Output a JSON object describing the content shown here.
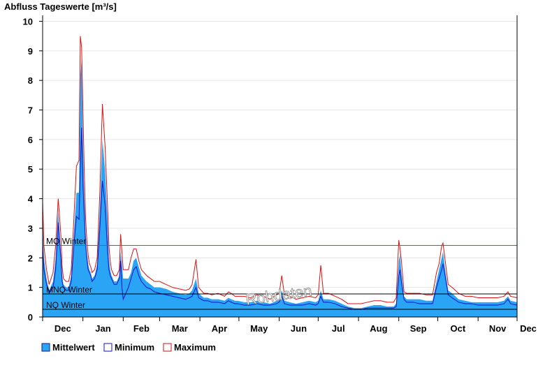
{
  "chart_data": {
    "type": "area",
    "title": "Abfluss Tageswerte [m³/s]",
    "ylim": [
      0,
      10.2
    ],
    "yticks": [
      0,
      1,
      2,
      3,
      4,
      5,
      6,
      7,
      8,
      9,
      10
    ],
    "xlim": [
      0,
      365
    ],
    "months": [
      {
        "label": "Dec",
        "x": 0
      },
      {
        "label": "Jan",
        "x": 31
      },
      {
        "label": "Feb",
        "x": 62
      },
      {
        "label": "Mar",
        "x": 90
      },
      {
        "label": "Apr",
        "x": 121
      },
      {
        "label": "May",
        "x": 151
      },
      {
        "label": "Jun",
        "x": 182
      },
      {
        "label": "Jul",
        "x": 212
      },
      {
        "label": "Aug",
        "x": 243
      },
      {
        "label": "Sep",
        "x": 274
      },
      {
        "label": "Oct",
        "x": 304
      },
      {
        "label": "Nov",
        "x": 335
      },
      {
        "label": "Dec",
        "x": 365
      }
    ],
    "series": [
      {
        "name": "Mittelwert",
        "color": "#2aa4f4",
        "x": [
          0,
          1,
          3,
          5,
          8,
          10,
          12,
          14,
          15,
          16,
          18,
          20,
          22,
          24,
          26,
          28,
          29,
          30,
          31,
          32,
          33,
          34,
          35,
          36,
          37,
          38,
          40,
          42,
          44,
          46,
          48,
          50,
          51,
          52,
          53,
          55,
          57,
          59,
          60,
          61,
          62,
          65,
          66,
          68,
          70,
          72,
          74,
          76,
          78,
          80,
          83,
          86,
          90,
          95,
          100,
          105,
          110,
          113,
          115,
          118,
          120,
          124,
          127,
          130,
          135,
          140,
          143,
          145,
          148,
          150,
          155,
          160,
          165,
          170,
          175,
          180,
          182,
          184,
          186,
          190,
          195,
          200,
          205,
          210,
          212,
          214,
          216,
          220,
          225,
          230,
          235,
          240,
          245,
          250,
          255,
          260,
          265,
          270,
          272,
          274,
          275,
          276,
          278,
          280,
          285,
          290,
          295,
          300,
          303,
          305,
          307,
          308,
          310,
          312,
          315,
          320,
          325,
          330,
          335,
          340,
          345,
          350,
          355,
          358,
          360,
          365
        ],
        "values": [
          3.3,
          2.0,
          1.3,
          0.9,
          1.2,
          2.0,
          3.6,
          2.2,
          1.4,
          1.1,
          1.0,
          1.0,
          1.4,
          2.8,
          4.2,
          4.2,
          8.2,
          8.7,
          6.0,
          4.2,
          2.9,
          2.2,
          1.8,
          1.6,
          1.5,
          1.3,
          1.4,
          1.8,
          3.6,
          6.0,
          5.0,
          3.2,
          2.0,
          1.6,
          1.4,
          1.2,
          1.2,
          1.4,
          2.2,
          1.8,
          1.3,
          1.3,
          1.3,
          1.5,
          1.9,
          2.0,
          1.7,
          1.4,
          1.3,
          1.2,
          1.1,
          1.0,
          1.0,
          0.95,
          0.85,
          0.8,
          0.75,
          0.8,
          0.9,
          1.3,
          0.8,
          0.65,
          0.65,
          0.6,
          0.6,
          0.55,
          0.65,
          0.6,
          0.55,
          0.55,
          0.5,
          0.5,
          0.55,
          0.5,
          0.45,
          0.55,
          0.6,
          0.9,
          0.55,
          0.5,
          0.45,
          0.5,
          0.55,
          0.5,
          0.55,
          0.9,
          0.6,
          0.6,
          0.55,
          0.45,
          0.35,
          0.3,
          0.3,
          0.35,
          0.4,
          0.4,
          0.35,
          0.35,
          0.45,
          1.9,
          2.1,
          1.5,
          0.7,
          0.6,
          0.6,
          0.6,
          0.55,
          0.55,
          1.2,
          1.6,
          2.0,
          2.2,
          1.5,
          0.9,
          0.8,
          0.6,
          0.55,
          0.5,
          0.5,
          0.5,
          0.5,
          0.5,
          0.55,
          0.7,
          0.55,
          0.5
        ]
      },
      {
        "name": "Minimum",
        "color": "#1111cc",
        "x": [
          0,
          1,
          3,
          5,
          8,
          10,
          12,
          14,
          15,
          16,
          18,
          20,
          22,
          24,
          26,
          28,
          29,
          30,
          31,
          32,
          33,
          34,
          35,
          36,
          37,
          38,
          40,
          42,
          44,
          46,
          48,
          50,
          51,
          52,
          53,
          55,
          57,
          59,
          60,
          61,
          62,
          65,
          66,
          68,
          70,
          72,
          74,
          76,
          78,
          80,
          83,
          86,
          90,
          95,
          100,
          105,
          110,
          113,
          115,
          118,
          120,
          124,
          127,
          130,
          135,
          140,
          143,
          145,
          148,
          150,
          155,
          160,
          165,
          170,
          175,
          180,
          182,
          184,
          186,
          190,
          195,
          200,
          205,
          210,
          212,
          214,
          216,
          220,
          225,
          230,
          235,
          240,
          245,
          250,
          255,
          260,
          265,
          270,
          272,
          274,
          275,
          276,
          278,
          280,
          285,
          290,
          295,
          300,
          303,
          305,
          307,
          308,
          310,
          312,
          315,
          320,
          325,
          330,
          335,
          340,
          345,
          350,
          355,
          358,
          360,
          365
        ],
        "values": [
          2.4,
          1.6,
          1.1,
          0.8,
          1.0,
          1.6,
          3.2,
          2.0,
          1.2,
          1.0,
          0.9,
          0.9,
          1.2,
          2.4,
          3.4,
          3.3,
          5.0,
          6.4,
          4.5,
          3.5,
          2.5,
          2.0,
          1.6,
          1.5,
          1.4,
          1.2,
          1.3,
          1.6,
          3.0,
          4.6,
          3.8,
          2.2,
          1.6,
          1.4,
          1.3,
          1.1,
          1.1,
          1.3,
          1.9,
          1.0,
          0.6,
          0.9,
          1.0,
          1.3,
          1.6,
          1.7,
          1.4,
          1.2,
          1.1,
          1.0,
          0.95,
          0.85,
          0.8,
          0.75,
          0.7,
          0.65,
          0.6,
          0.65,
          0.7,
          1.0,
          0.65,
          0.55,
          0.55,
          0.5,
          0.5,
          0.45,
          0.55,
          0.5,
          0.45,
          0.45,
          0.4,
          0.4,
          0.45,
          0.4,
          0.4,
          0.45,
          0.5,
          0.7,
          0.45,
          0.4,
          0.4,
          0.4,
          0.45,
          0.4,
          0.45,
          0.7,
          0.5,
          0.5,
          0.45,
          0.35,
          0.3,
          0.25,
          0.25,
          0.3,
          0.3,
          0.3,
          0.3,
          0.3,
          0.35,
          1.4,
          1.6,
          1.2,
          0.6,
          0.5,
          0.5,
          0.45,
          0.45,
          0.45,
          1.0,
          1.3,
          1.6,
          1.8,
          1.3,
          0.75,
          0.65,
          0.5,
          0.45,
          0.45,
          0.4,
          0.4,
          0.4,
          0.4,
          0.45,
          0.6,
          0.45,
          0.4
        ]
      },
      {
        "name": "Maximum",
        "color": "#dd1111",
        "x": [
          0,
          1,
          3,
          5,
          8,
          10,
          12,
          14,
          15,
          16,
          18,
          20,
          22,
          24,
          26,
          28,
          29,
          30,
          31,
          32,
          33,
          34,
          35,
          36,
          37,
          38,
          40,
          42,
          44,
          46,
          48,
          50,
          51,
          52,
          53,
          55,
          57,
          59,
          60,
          61,
          62,
          65,
          66,
          68,
          70,
          72,
          74,
          76,
          78,
          80,
          83,
          86,
          90,
          95,
          100,
          105,
          110,
          113,
          115,
          118,
          120,
          124,
          127,
          130,
          135,
          140,
          143,
          145,
          148,
          150,
          155,
          160,
          165,
          170,
          175,
          180,
          182,
          184,
          186,
          190,
          195,
          200,
          205,
          210,
          212,
          214,
          216,
          220,
          225,
          230,
          235,
          240,
          245,
          250,
          255,
          260,
          265,
          270,
          272,
          274,
          275,
          276,
          278,
          280,
          285,
          290,
          295,
          300,
          303,
          305,
          307,
          308,
          310,
          312,
          315,
          320,
          325,
          330,
          335,
          340,
          345,
          350,
          355,
          358,
          360,
          365
        ],
        "values": [
          3.9,
          2.4,
          1.6,
          1.1,
          1.5,
          2.4,
          4.0,
          2.8,
          1.7,
          1.3,
          1.2,
          1.2,
          1.6,
          3.3,
          5.1,
          5.3,
          9.5,
          9.1,
          7.0,
          5.0,
          3.4,
          2.6,
          2.1,
          1.8,
          1.7,
          1.5,
          1.6,
          2.0,
          4.2,
          7.2,
          5.8,
          3.7,
          2.4,
          1.9,
          1.6,
          1.4,
          1.4,
          1.6,
          2.8,
          2.2,
          1.6,
          1.6,
          1.6,
          2.0,
          2.3,
          2.3,
          1.9,
          1.6,
          1.5,
          1.4,
          1.3,
          1.2,
          1.2,
          1.1,
          1.0,
          0.95,
          0.9,
          0.95,
          1.1,
          1.95,
          1.0,
          0.8,
          0.8,
          0.75,
          0.8,
          0.7,
          0.85,
          0.8,
          0.7,
          0.7,
          0.7,
          0.65,
          0.75,
          0.7,
          0.6,
          0.75,
          0.8,
          1.4,
          0.75,
          0.7,
          0.6,
          0.65,
          0.7,
          0.65,
          0.75,
          1.75,
          0.8,
          0.8,
          0.7,
          0.6,
          0.45,
          0.45,
          0.45,
          0.5,
          0.55,
          0.55,
          0.5,
          0.5,
          0.65,
          2.6,
          2.3,
          1.9,
          0.85,
          0.8,
          0.8,
          0.8,
          0.75,
          0.75,
          1.5,
          1.8,
          2.4,
          2.5,
          1.8,
          1.1,
          1.0,
          0.8,
          0.7,
          0.7,
          0.65,
          0.65,
          0.65,
          0.65,
          0.7,
          0.85,
          0.7,
          0.65
        ]
      }
    ],
    "reference_lines": [
      {
        "label": "MQ Winter",
        "value": 2.42,
        "color": "#2f8a2f"
      },
      {
        "label": "MNQ Winter",
        "value": 0.78,
        "color": "#000000"
      },
      {
        "label": "NQ Winter",
        "value": 0.26,
        "color": "#000000"
      }
    ],
    "watermark": "Rohdaten",
    "legend_position": "bottom-left",
    "grid": "horizontal"
  }
}
